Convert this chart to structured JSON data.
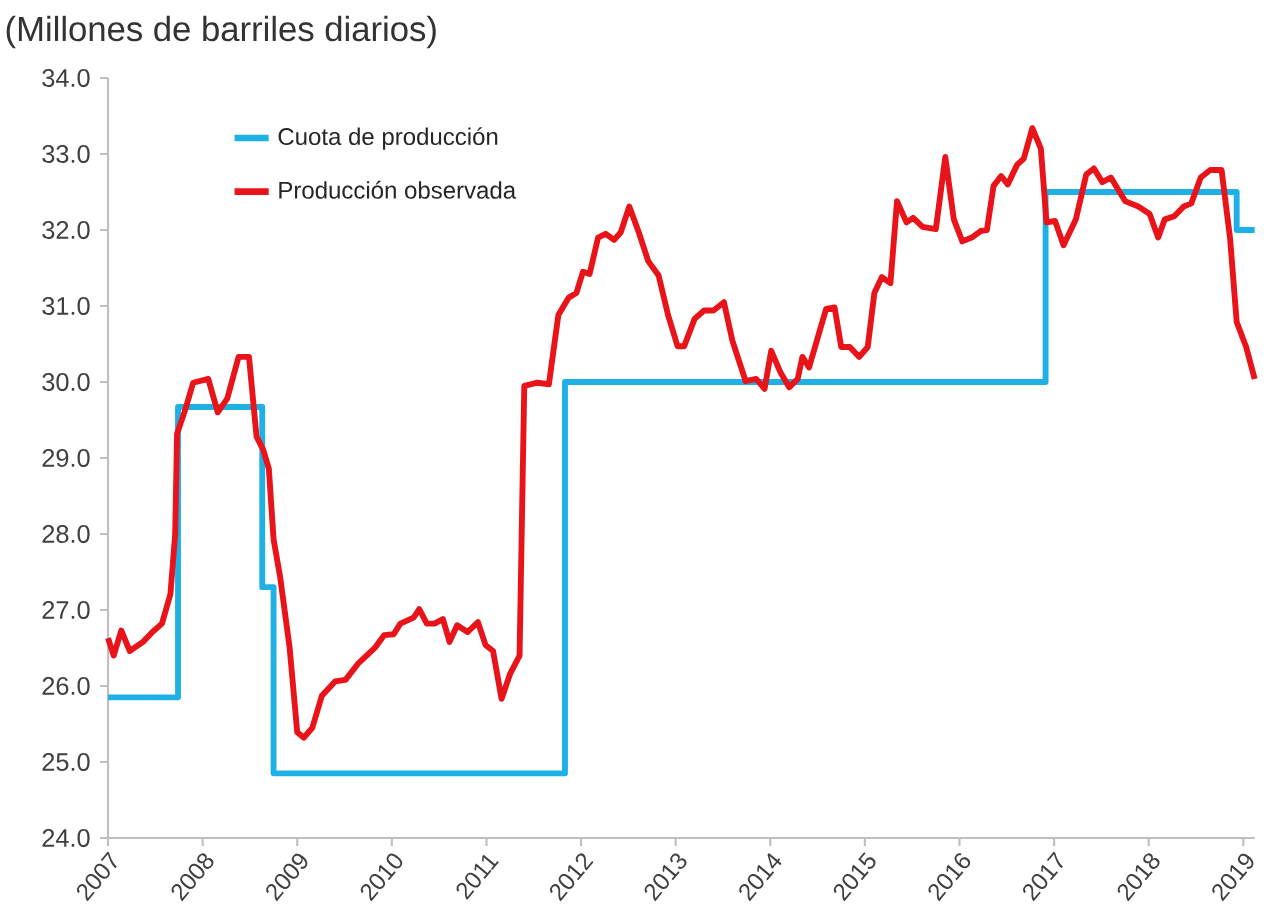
{
  "chart_data": {
    "type": "line",
    "title": "(Millones de barriles diarios)",
    "xlim": [
      2007,
      2019.12
    ],
    "xticks": [
      2007,
      2008,
      2009,
      2010,
      2011,
      2012,
      2013,
      2014,
      2015,
      2016,
      2017,
      2018,
      2019
    ],
    "ylim": [
      24,
      34
    ],
    "yticks": [
      {
        "value": 24,
        "label": "24.0"
      },
      {
        "value": 25,
        "label": "25.0"
      },
      {
        "value": 26,
        "label": "26.0"
      },
      {
        "value": 27,
        "label": "27.0"
      },
      {
        "value": 28,
        "label": "28.0"
      },
      {
        "value": 29,
        "label": "29.0"
      },
      {
        "value": 30,
        "label": "30.0"
      },
      {
        "value": 31,
        "label": "31.0"
      },
      {
        "value": 32,
        "label": "32.0"
      },
      {
        "value": 33,
        "label": "33.0"
      },
      {
        "value": 34,
        "label": "34.0"
      }
    ],
    "legend": "top left",
    "grid": false,
    "series": [
      {
        "name": "Cuota de producción",
        "type": "step",
        "color": "#1fb1e6",
        "x": [
          2007.0,
          2007.74,
          2008.63,
          2008.75,
          2011.83,
          2016.91,
          2018.93,
          2019.12
        ],
        "values": [
          25.85,
          29.67,
          27.3,
          24.85,
          30.0,
          32.5,
          32.0,
          32.0
        ]
      },
      {
        "name": "Producción observada",
        "type": "line",
        "color": "#e8141a",
        "x": [
          2007.0,
          2007.06,
          2007.14,
          2007.23,
          2007.37,
          2007.47,
          2007.57,
          2007.66,
          2007.71,
          2007.73,
          2007.81,
          2007.9,
          2008.06,
          2008.16,
          2008.26,
          2008.38,
          2008.49,
          2008.57,
          2008.64,
          2008.7,
          2008.75,
          2008.82,
          2008.92,
          2009.0,
          2009.07,
          2009.16,
          2009.26,
          2009.4,
          2009.51,
          2009.64,
          2009.82,
          2009.92,
          2010.02,
          2010.09,
          2010.23,
          2010.29,
          2010.37,
          2010.45,
          2010.54,
          2010.61,
          2010.69,
          2010.8,
          2010.91,
          2010.99,
          2011.07,
          2011.16,
          2011.25,
          2011.35,
          2011.4,
          2011.54,
          2011.66,
          2011.76,
          2011.87,
          2011.95,
          2012.02,
          2012.09,
          2012.18,
          2012.26,
          2012.35,
          2012.42,
          2012.51,
          2012.61,
          2012.71,
          2012.82,
          2012.92,
          2013.02,
          2013.09,
          2013.2,
          2013.3,
          2013.4,
          2013.51,
          2013.6,
          2013.74,
          2013.85,
          2013.94,
          2014.01,
          2014.11,
          2014.2,
          2014.29,
          2014.34,
          2014.41,
          2014.51,
          2014.59,
          2014.68,
          2014.75,
          2014.84,
          2014.94,
          2015.03,
          2015.1,
          2015.18,
          2015.27,
          2015.34,
          2015.44,
          2015.51,
          2015.61,
          2015.75,
          2015.85,
          2015.94,
          2016.03,
          2016.13,
          2016.23,
          2016.29,
          2016.36,
          2016.44,
          2016.51,
          2016.61,
          2016.68,
          2016.77,
          2016.86,
          2016.92,
          2017.01,
          2017.1,
          2017.23,
          2017.34,
          2017.42,
          2017.51,
          2017.6,
          2017.75,
          2017.89,
          2018.01,
          2018.1,
          2018.17,
          2018.27,
          2018.37,
          2018.45,
          2018.55,
          2018.65,
          2018.77,
          2018.86,
          2018.93,
          2019.03,
          2019.12
        ],
        "values": [
          26.63,
          26.4,
          26.73,
          26.46,
          26.58,
          26.71,
          26.82,
          27.21,
          28.0,
          29.32,
          29.61,
          29.99,
          30.04,
          29.6,
          29.78,
          30.33,
          30.33,
          29.28,
          29.11,
          28.86,
          27.93,
          27.43,
          26.5,
          25.39,
          25.32,
          25.45,
          25.87,
          26.06,
          26.08,
          26.29,
          26.5,
          26.67,
          26.68,
          26.82,
          26.9,
          27.01,
          26.82,
          26.82,
          26.88,
          26.58,
          26.8,
          26.71,
          26.84,
          26.54,
          26.46,
          25.83,
          26.16,
          26.4,
          29.95,
          29.99,
          29.97,
          30.88,
          31.11,
          31.17,
          31.45,
          31.42,
          31.9,
          31.95,
          31.87,
          31.97,
          32.31,
          31.97,
          31.59,
          31.4,
          30.88,
          30.47,
          30.47,
          30.83,
          30.94,
          30.94,
          31.05,
          30.54,
          30.01,
          30.04,
          29.91,
          30.41,
          30.12,
          29.93,
          30.04,
          30.33,
          30.19,
          30.62,
          30.96,
          30.98,
          30.46,
          30.46,
          30.33,
          30.46,
          31.17,
          31.38,
          31.3,
          32.38,
          32.1,
          32.16,
          32.04,
          32.01,
          32.96,
          32.14,
          31.85,
          31.9,
          31.99,
          32.0,
          32.58,
          32.71,
          32.6,
          32.86,
          32.94,
          33.34,
          33.07,
          32.1,
          32.12,
          31.8,
          32.14,
          32.73,
          32.81,
          32.63,
          32.69,
          32.38,
          32.31,
          32.21,
          31.9,
          32.14,
          32.18,
          32.31,
          32.35,
          32.69,
          32.79,
          32.79,
          31.89,
          30.79,
          30.46,
          30.04
        ]
      }
    ]
  }
}
